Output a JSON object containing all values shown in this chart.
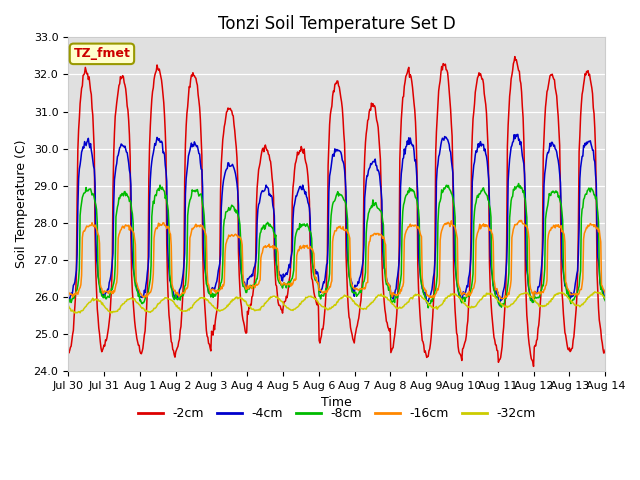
{
  "title": "Tonzi Soil Temperature Set D",
  "xlabel": "Time",
  "ylabel": "Soil Temperature (C)",
  "ylim": [
    24.0,
    33.0
  ],
  "yticks": [
    24.0,
    25.0,
    26.0,
    27.0,
    28.0,
    29.0,
    30.0,
    31.0,
    32.0,
    33.0
  ],
  "xtick_labels": [
    "Jul 30",
    "Jul 31",
    "Aug 1",
    "Aug 2",
    "Aug 3",
    "Aug 4",
    "Aug 5",
    "Aug 6",
    "Aug 7",
    "Aug 8",
    "Aug 9",
    "Aug 10",
    "Aug 11",
    "Aug 12",
    "Aug 13",
    "Aug 14"
  ],
  "legend_label": "TZ_fmet",
  "series_labels": [
    "-2cm",
    "-4cm",
    "-8cm",
    "-16cm",
    "-32cm"
  ],
  "series_colors": [
    "#dd0000",
    "#0000cc",
    "#00bb00",
    "#ff8800",
    "#cccc00"
  ],
  "fig_bg": "#ffffff",
  "axes_bg": "#e0e0e0",
  "grid_color": "#f0f0f0",
  "n_days": 15,
  "spd": 48,
  "title_fontsize": 12,
  "axis_label_fontsize": 9,
  "tick_fontsize": 8,
  "legend_fontsize": 9,
  "line_width": 1.1,
  "peak_modulation": [
    1.0,
    0.95,
    1.02,
    0.98,
    0.8,
    0.58,
    0.55,
    0.92,
    0.8,
    1.0,
    1.05,
    0.98,
    1.08,
    0.97,
    1.0
  ],
  "base_modulation": [
    0.0,
    0.0,
    0.0,
    0.0,
    -0.3,
    -0.6,
    -0.5,
    0.0,
    -0.2,
    0.0,
    0.0,
    0.0,
    0.0,
    0.0,
    0.0
  ]
}
